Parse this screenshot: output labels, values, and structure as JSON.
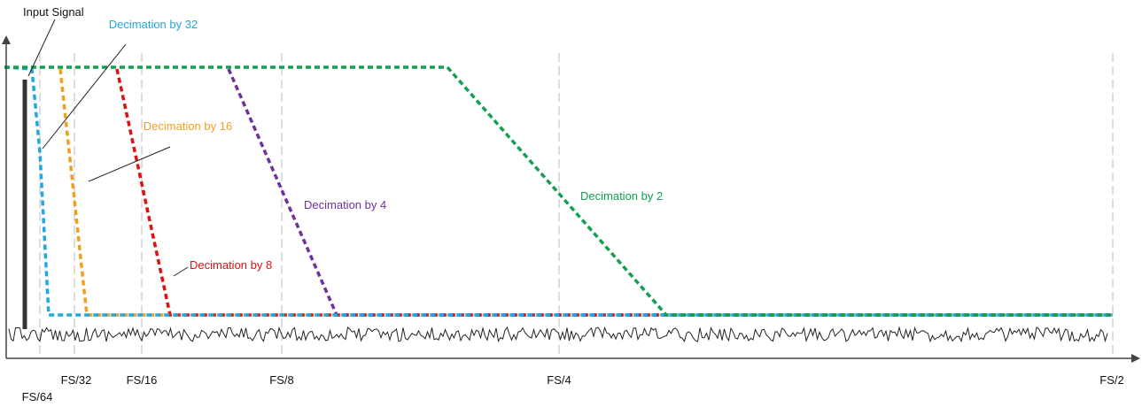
{
  "labels": {
    "input_signal": "Input Signal",
    "decimation_32": "Decimation by 32",
    "decimation_16": "Decimation by 16",
    "decimation_8": "Decimation by 8",
    "decimation_4": "Decimation by 4",
    "decimation_2": "Decimation by 2"
  },
  "axis": {
    "ticks": [
      "FS/64",
      "FS/32",
      "FS/16",
      "FS/8",
      "FS/4",
      "FS/2"
    ]
  }
}
